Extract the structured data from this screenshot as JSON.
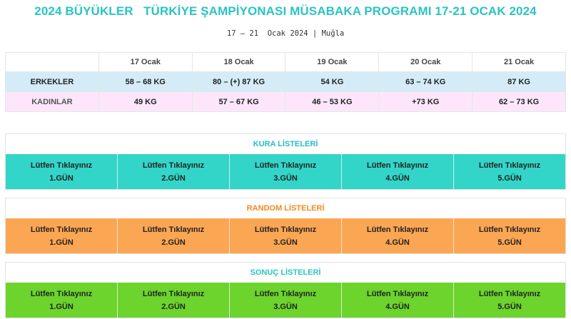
{
  "title": "2024 BÜYÜKLER   TÜRKİYE ŞAMPİYONASI MÜSABAKA PROGRAMI 17-21 OCAK 2024",
  "subtitle": "17 – 21  Ocak 2024 | Muğla",
  "schedule": {
    "headers": [
      "",
      "17 Ocak",
      "18 Ocak",
      "19 Ocak",
      "20 Ocak",
      "21 Ocak"
    ],
    "men": {
      "label": "ERKEKLER",
      "values": [
        "58 – 68 KG",
        "80 – (+) 87 KG",
        "54 KG",
        "63 – 74 KG",
        "87 KG"
      ]
    },
    "women": {
      "label": "KADINLAR",
      "values": [
        "49 KG",
        "57 – 67 KG",
        "46 – 53 KG",
        "+73 KG",
        "62 – 73 KG"
      ]
    }
  },
  "sections": {
    "kura": {
      "title": "KURA LİSTELERİ",
      "buttons": [
        {
          "line1": "Lütfen Tıklayınız",
          "line2": "1.GÜN"
        },
        {
          "line1": "Lütfen Tıklayınız",
          "line2": "2.GÜN"
        },
        {
          "line1": "Lütfen Tıklayınız",
          "line2": "3.GÜN"
        },
        {
          "line1": "Lütfen Tıklayınız",
          "line2": "4.GÜN"
        },
        {
          "line1": "Lütfen Tıklayınız",
          "line2": "5.GÜN"
        }
      ]
    },
    "random": {
      "title": "RANDOM LİSTELERİ",
      "buttons": [
        {
          "line1": "Lütfen Tıklayınız",
          "line2": "1.GÜN"
        },
        {
          "line1": "Lütfen Tıklayınız",
          "line2": "2.GÜN"
        },
        {
          "line1": "Lütfen Tıklayınız",
          "line2": "3.GÜN"
        },
        {
          "line1": "Lütfen Tıklayınız",
          "line2": "4.GÜN"
        },
        {
          "line1": "Lütfen Tıklayınız",
          "line2": "5.GÜN"
        }
      ]
    },
    "sonuc": {
      "title": "SONUÇ LİSTELERİ",
      "buttons": [
        {
          "line1": "Lütfen Tıklayınız",
          "line2": "1.GÜN"
        },
        {
          "line1": "Lütfen Tıklayınız",
          "line2": "2.GÜN"
        },
        {
          "line1": "Lütfen Tıklayınız",
          "line2": "3.GÜN"
        },
        {
          "line1": "Lütfen Tıklayınız",
          "line2": "4.GÜN"
        },
        {
          "line1": "Lütfen Tıklayınız",
          "line2": "5.GÜN"
        }
      ]
    }
  },
  "colors": {
    "title": "#29c4c4",
    "kura_button": "#33d5c9",
    "random_button": "#fba653",
    "sonuc_button": "#6cd42c",
    "men_row": "#d3ecf8",
    "women_row": "#fde6fb"
  }
}
